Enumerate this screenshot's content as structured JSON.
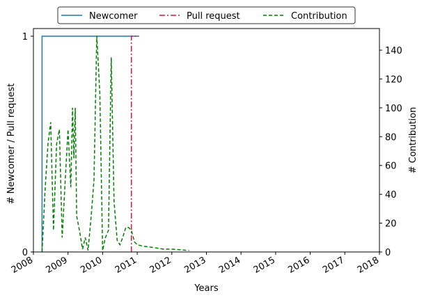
{
  "chart_data": {
    "type": "line",
    "xlabel": "Years",
    "ylabel_left": "# Newcomer / Pull request",
    "ylabel_right": "# Contribution",
    "x_ticks": [
      "2008",
      "2009",
      "2010",
      "2011",
      "2012",
      "2013",
      "2014",
      "2015",
      "2016",
      "2017",
      "2018"
    ],
    "xlim": [
      2008,
      2018
    ],
    "ylim_left": [
      0,
      1
    ],
    "y_ticks_left": [
      "0",
      "1"
    ],
    "ylim_right": [
      0,
      155
    ],
    "y_ticks_right": [
      "0",
      "20",
      "40",
      "60",
      "80",
      "100",
      "120",
      "140"
    ],
    "legend_position": "top-center",
    "colors": {
      "newcomer": "#1f77b4",
      "pull_request": "#dc143c",
      "contribution": "#008000"
    },
    "series": [
      {
        "name": "Newcomer",
        "axis": "left",
        "style": "solid",
        "color_key": "newcomer",
        "x": [
          2008.25,
          2008.25,
          2011.05
        ],
        "y": [
          0,
          1,
          1
        ]
      },
      {
        "name": "Pull request",
        "axis": "left",
        "style": "dashdot",
        "color_key": "pull_request",
        "x": [
          2010.83,
          2010.83,
          2011.05
        ],
        "y": [
          0,
          1,
          1
        ]
      },
      {
        "name": "Contribution",
        "axis": "right",
        "style": "dashed",
        "color_key": "contribution",
        "x": [
          2008.25,
          2008.33,
          2008.42,
          2008.5,
          2008.58,
          2008.67,
          2008.75,
          2008.83,
          2008.92,
          2009.0,
          2009.08,
          2009.13,
          2009.17,
          2009.21,
          2009.25,
          2009.33,
          2009.42,
          2009.5,
          2009.58,
          2009.67,
          2009.75,
          2009.83,
          2009.92,
          2010.0,
          2010.08,
          2010.17,
          2010.25,
          2010.33,
          2010.42,
          2010.5,
          2010.58,
          2010.67,
          2010.75,
          2010.83,
          2010.92,
          2011.0,
          2011.17,
          2011.5,
          2011.75,
          2012.0,
          2012.25,
          2012.5
        ],
        "y": [
          0,
          40,
          75,
          90,
          15,
          75,
          85,
          10,
          50,
          85,
          45,
          100,
          65,
          100,
          25,
          15,
          2,
          10,
          1,
          25,
          50,
          150,
          110,
          1,
          10,
          15,
          135,
          35,
          8,
          5,
          10,
          17,
          17,
          15,
          7,
          5,
          4,
          3,
          2,
          2,
          1.5,
          1
        ]
      }
    ]
  }
}
